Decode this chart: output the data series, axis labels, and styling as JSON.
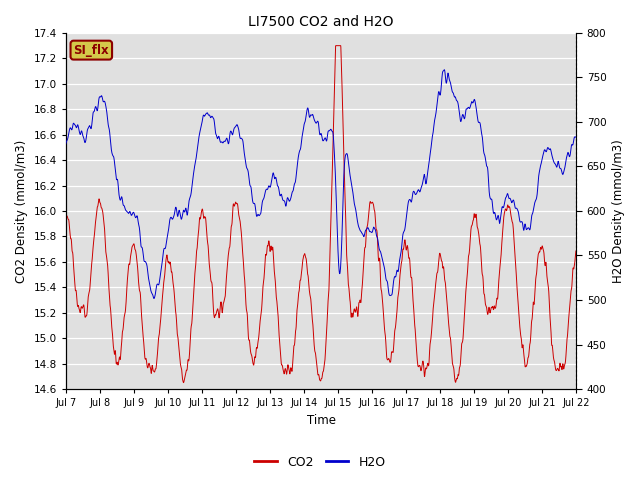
{
  "title": "LI7500 CO2 and H2O",
  "xlabel": "Time",
  "ylabel_left": "CO2 Density (mmol/m3)",
  "ylabel_right": "H2O Density (mmol/m3)",
  "ylim_left": [
    14.6,
    17.4
  ],
  "ylim_right": [
    400,
    800
  ],
  "xlim": [
    0,
    360
  ],
  "xtick_positions": [
    0,
    24,
    48,
    72,
    96,
    120,
    144,
    168,
    192,
    216,
    240,
    264,
    288,
    312,
    336,
    360
  ],
  "xtick_labels": [
    "Jul 7",
    "Jul 8",
    "Jul 9",
    "Jul 10",
    "Jul 11",
    "Jul 12",
    "Jul 13",
    "Jul 14",
    "Jul 15",
    "Jul 16",
    "Jul 17",
    "Jul 18",
    "Jul 19",
    "Jul 20",
    "Jul 21",
    "Jul 22"
  ],
  "co2_color": "#cc0000",
  "h2o_color": "#0000cc",
  "bg_color": "#e0e0e0",
  "annotation_text": "SI_flx",
  "annotation_bg": "#d4c84a",
  "annotation_border": "#8b0000",
  "legend_co2": "CO2",
  "legend_h2o": "H2O",
  "fig_bg": "#ffffff",
  "yticks_left": [
    14.6,
    14.8,
    15.0,
    15.2,
    15.4,
    15.6,
    15.8,
    16.0,
    16.2,
    16.4,
    16.6,
    16.8,
    17.0,
    17.2,
    17.4
  ],
  "yticks_right": [
    400,
    450,
    500,
    550,
    600,
    650,
    700,
    750,
    800
  ]
}
